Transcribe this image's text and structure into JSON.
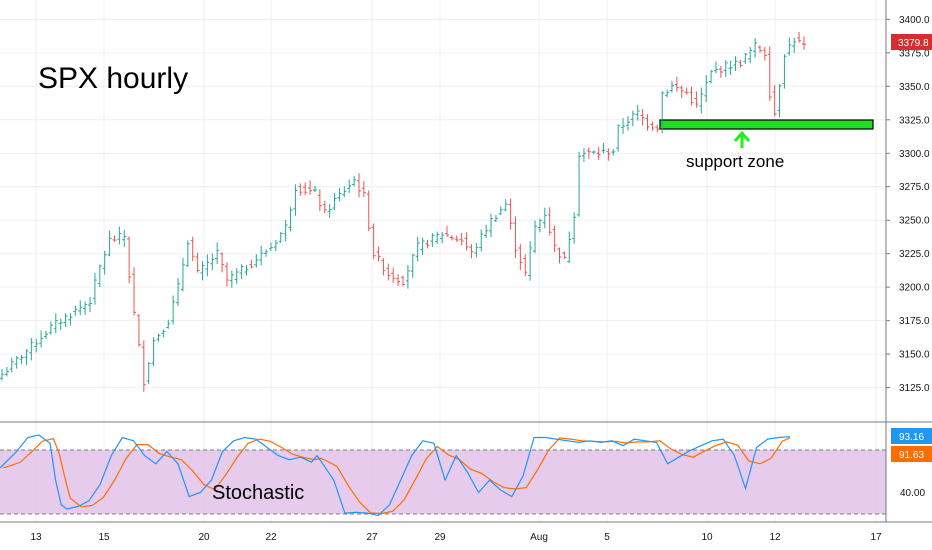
{
  "chart_data": [
    {
      "type": "ohlc",
      "title": "SPX hourly",
      "price_scale": {
        "ticks": [
          "3400.0",
          "3375.0",
          "3350.0",
          "3325.0",
          "3300.0",
          "3275.0",
          "3250.0",
          "3225.0",
          "3200.0",
          "3175.0",
          "3150.0",
          "3125.0"
        ],
        "range": [
          3112,
          3404
        ]
      },
      "x_ticks": [
        "13",
        "15",
        "20",
        "22",
        "27",
        "29",
        "Aug",
        "5",
        "10",
        "12",
        "17"
      ],
      "last_price_label": "3379.8",
      "colors": {
        "up": "#26a69a",
        "down": "#ef5350",
        "badge": "#d32f2f",
        "zone": "#22dd22",
        "arrow": "#22ee22"
      },
      "annotations": {
        "zone_label": "support zone",
        "zone_low": 3318,
        "zone_high": 3325
      },
      "anchors": [
        [
          0,
          3135
        ],
        [
          10,
          3170
        ],
        [
          18,
          3190
        ],
        [
          20,
          3215
        ],
        [
          22,
          3235
        ],
        [
          25,
          3238
        ],
        [
          27,
          3180
        ],
        [
          29,
          3130
        ],
        [
          31,
          3160
        ],
        [
          34,
          3175
        ],
        [
          36,
          3200
        ],
        [
          38,
          3235
        ],
        [
          40,
          3210
        ],
        [
          44,
          3225
        ],
        [
          46,
          3205
        ],
        [
          50,
          3215
        ],
        [
          55,
          3230
        ],
        [
          58,
          3245
        ],
        [
          60,
          3275
        ],
        [
          64,
          3270
        ],
        [
          66,
          3255
        ],
        [
          68,
          3265
        ],
        [
          72,
          3280
        ],
        [
          74,
          3268
        ],
        [
          76,
          3225
        ],
        [
          79,
          3210
        ],
        [
          82,
          3205
        ],
        [
          85,
          3230
        ],
        [
          90,
          3240
        ],
        [
          94,
          3235
        ],
        [
          96,
          3225
        ],
        [
          100,
          3250
        ],
        [
          103,
          3262
        ],
        [
          105,
          3230
        ],
        [
          107,
          3210
        ],
        [
          109,
          3245
        ],
        [
          111,
          3255
        ],
        [
          113,
          3230
        ],
        [
          115,
          3220
        ],
        [
          117,
          3255
        ],
        [
          118,
          3300
        ],
        [
          122,
          3300
        ],
        [
          125,
          3302
        ],
        [
          126,
          3318
        ],
        [
          128,
          3325
        ],
        [
          130,
          3330
        ],
        [
          132,
          3322
        ],
        [
          134,
          3320
        ],
        [
          135,
          3345
        ],
        [
          137,
          3350
        ],
        [
          140,
          3345
        ],
        [
          142,
          3335
        ],
        [
          145,
          3360
        ],
        [
          148,
          3365
        ],
        [
          151,
          3368
        ],
        [
          154,
          3380
        ],
        [
          156,
          3375
        ],
        [
          157,
          3345
        ],
        [
          158,
          3330
        ],
        [
          160,
          3375
        ],
        [
          162,
          3385
        ],
        [
          164,
          3380
        ]
      ]
    },
    {
      "type": "line",
      "title": "Stochastic",
      "scale": {
        "ticks": [
          "40.00"
        ],
        "range": [
          -6,
          106
        ],
        "levels": [
          20,
          80
        ]
      },
      "series": [
        {
          "name": "",
          "color": "#2196f3",
          "current_label": "93.16"
        },
        {
          "name": "",
          "color": "#ff6d00",
          "current_label": "91.63"
        }
      ],
      "band_color": "#e1bee7",
      "points": [
        [
          0,
          55
        ],
        [
          3,
          75
        ],
        [
          5,
          92
        ],
        [
          7,
          95
        ],
        [
          9,
          85
        ],
        [
          10,
          40
        ],
        [
          11,
          10
        ],
        [
          12,
          5
        ],
        [
          14,
          8
        ],
        [
          16,
          15
        ],
        [
          18,
          35
        ],
        [
          20,
          70
        ],
        [
          22,
          92
        ],
        [
          24,
          88
        ],
        [
          26,
          70
        ],
        [
          28,
          60
        ],
        [
          30,
          75
        ],
        [
          32,
          60
        ],
        [
          34,
          20
        ],
        [
          36,
          25
        ],
        [
          38,
          40
        ],
        [
          40,
          75
        ],
        [
          42,
          88
        ],
        [
          44,
          92
        ],
        [
          46,
          90
        ],
        [
          48,
          80
        ],
        [
          50,
          70
        ],
        [
          52,
          65
        ],
        [
          54,
          68
        ],
        [
          56,
          62
        ],
        [
          57,
          70
        ],
        [
          58,
          60
        ],
        [
          60,
          40
        ],
        [
          62,
          0
        ],
        [
          64,
          1
        ],
        [
          66,
          0
        ],
        [
          68,
          -3
        ],
        [
          70,
          10
        ],
        [
          72,
          40
        ],
        [
          74,
          70
        ],
        [
          76,
          88
        ],
        [
          78,
          85
        ],
        [
          80,
          40
        ],
        [
          82,
          70
        ],
        [
          84,
          50
        ],
        [
          86,
          25
        ],
        [
          88,
          40
        ],
        [
          90,
          28
        ],
        [
          92,
          20
        ],
        [
          94,
          45
        ],
        [
          96,
          92
        ],
        [
          98,
          92
        ],
        [
          100,
          90
        ],
        [
          102,
          88
        ],
        [
          104,
          86
        ],
        [
          106,
          88
        ],
        [
          108,
          86
        ],
        [
          110,
          88
        ],
        [
          112,
          82
        ],
        [
          114,
          90
        ],
        [
          116,
          88
        ],
        [
          118,
          86
        ],
        [
          120,
          60
        ],
        [
          122,
          68
        ],
        [
          124,
          76
        ],
        [
          126,
          82
        ],
        [
          128,
          88
        ],
        [
          130,
          90
        ],
        [
          132,
          70
        ],
        [
          134,
          30
        ],
        [
          136,
          80
        ],
        [
          138,
          90
        ],
        [
          140,
          92
        ],
        [
          142,
          93
        ]
      ]
    }
  ]
}
